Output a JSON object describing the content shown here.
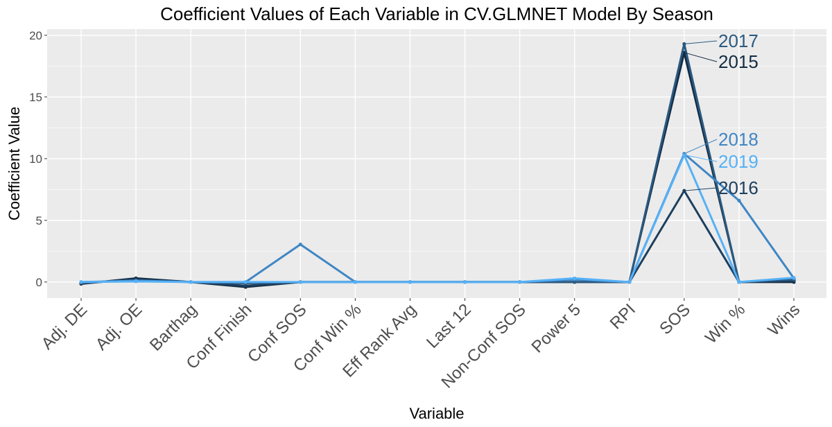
{
  "chart_data": {
    "type": "line",
    "title": "Coefficient Values of Each Variable in CV.GLMNET Model By Season",
    "xlabel": "Variable",
    "ylabel": "Coefficient Value",
    "ylim": [
      -1.3,
      20.5
    ],
    "yticks": [
      0,
      5,
      10,
      15,
      20
    ],
    "grid": true,
    "legend": "direct labels at right",
    "categories": [
      "Adj. DE",
      "Adj. OE",
      "Barthag",
      "Conf Finish",
      "Conf SOS",
      "Conf Win %",
      "Eff Rank Avg",
      "Last 12",
      "Non-Conf SOS",
      "Power 5",
      "RPI",
      "SOS",
      "Win %",
      "Wins"
    ],
    "series": [
      {
        "name": "2015",
        "color": "#132b43",
        "values": [
          -0.15,
          0.3,
          0,
          -0.4,
          0,
          0,
          0,
          0,
          0,
          0,
          0,
          18.6,
          0,
          0
        ]
      },
      {
        "name": "2016",
        "color": "#1d3f5e",
        "values": [
          -0.1,
          0.2,
          0,
          -0.3,
          0,
          0,
          0,
          0,
          0,
          0,
          0,
          7.4,
          0,
          0.1
        ]
      },
      {
        "name": "2017",
        "color": "#2a5980",
        "values": [
          -0.05,
          0.15,
          0,
          -0.1,
          0,
          0,
          0,
          0,
          0,
          0,
          0,
          19.3,
          0,
          0.2
        ]
      },
      {
        "name": "2018",
        "color": "#3f86c4",
        "values": [
          0,
          0.1,
          0,
          0,
          3.05,
          0,
          0,
          0,
          0,
          0.2,
          0,
          10.4,
          6.6,
          0.3
        ]
      },
      {
        "name": "2019",
        "color": "#56b1f7",
        "values": [
          0,
          0.05,
          0,
          0,
          0,
          0,
          0,
          0,
          0,
          0.3,
          0,
          10.3,
          0,
          0.35
        ]
      }
    ]
  }
}
